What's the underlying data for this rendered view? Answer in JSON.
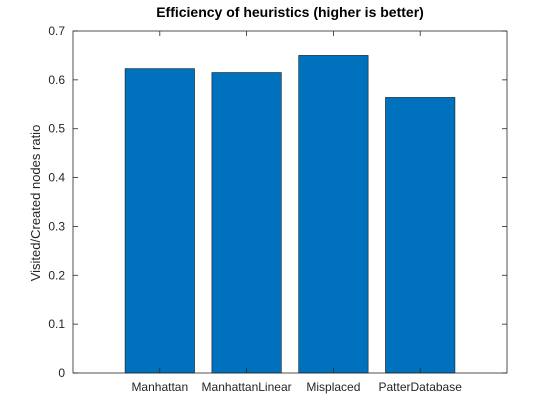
{
  "chart_data": {
    "type": "bar",
    "title": "Efficiency of heuristics (higher is better)",
    "xlabel": "",
    "ylabel": "Visited/Created nodes ratio",
    "categories": [
      "Manhattan",
      "ManhattanLinear",
      "Misplaced",
      "PatterDatabase"
    ],
    "values": [
      0.623,
      0.615,
      0.65,
      0.564
    ],
    "ylim": [
      0,
      0.7
    ],
    "yticks": [
      0,
      0.1,
      0.2,
      0.3,
      0.4,
      0.5,
      0.6,
      0.7
    ],
    "ytick_labels": [
      "0",
      "0.1",
      "0.2",
      "0.3",
      "0.4",
      "0.5",
      "0.6",
      "0.7"
    ],
    "grid": false,
    "bar_color": "#0072BD",
    "bar_edge_color": "#1a1a1a",
    "axis_color": "#262626"
  }
}
